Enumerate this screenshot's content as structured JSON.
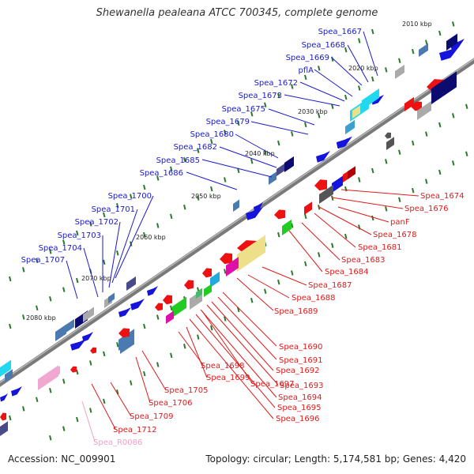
{
  "title": "Shewanella pealeana ATCC 700345, complete genome",
  "footer": {
    "accession": "Accession: NC_009901",
    "topology": "Topology: circular; Length: 5,174,581 bp; Genes: 4,420"
  },
  "colors": {
    "forward_label": "#1a1acc",
    "reverse_label": "#e01a1a",
    "rna_label": "#f0a0c8",
    "backbone": "#808080",
    "ticks": "#2a7a2a"
  },
  "kbp_ticks": [
    "2010 kbp",
    "2020 kbp",
    "2030 kbp",
    "2040 kbp",
    "2050 kbp",
    "2060 kbp",
    "2070 kbp",
    "2080 kbp"
  ],
  "forward_labels": [
    "Spea_1667",
    "Spea_1668",
    "Spea_1669",
    "pflA",
    "Spea_1672",
    "Spea_1673",
    "Spea_1675",
    "Spea_1679",
    "Spea_1680",
    "Spea_1682",
    "Spea_1685",
    "Spea_1686",
    "Spea_1700",
    "Spea_1701",
    "Spea_1702",
    "Spea_1703",
    "Spea_1704",
    "Spea_1707"
  ],
  "reverse_labels": [
    "Spea_1674",
    "Spea_1676",
    "panF",
    "Spea_1678",
    "Spea_1681",
    "Spea_1683",
    "Spea_1684",
    "Spea_1687",
    "Spea_1688",
    "Spea_1689",
    "Spea_1690",
    "Spea_1691",
    "Spea_1692",
    "Spea_1693",
    "Spea_1694",
    "Spea_1695",
    "Spea_1696",
    "Spea_1697",
    "Spea_1698",
    "Spea_1699",
    "Spea_1705",
    "Spea_1706",
    "Spea_1709",
    "Spea_1712"
  ],
  "rna_labels": [
    "Spea_R0086"
  ]
}
